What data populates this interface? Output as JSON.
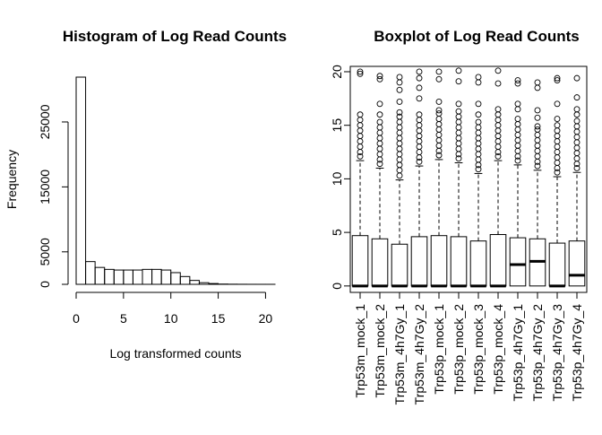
{
  "chart_data": [
    {
      "type": "bar",
      "subtype": "histogram",
      "title": "Histogram of Log Read Counts",
      "xlabel": "Log transformed counts",
      "ylabel": "Frequency",
      "bin_width": 1,
      "bins": [
        {
          "x0": 0,
          "x1": 1,
          "value": 31900
        },
        {
          "x0": 1,
          "x1": 2,
          "value": 3500
        },
        {
          "x0": 2,
          "x1": 3,
          "value": 2600
        },
        {
          "x0": 3,
          "x1": 4,
          "value": 2300
        },
        {
          "x0": 4,
          "x1": 5,
          "value": 2200
        },
        {
          "x0": 5,
          "x1": 6,
          "value": 2200
        },
        {
          "x0": 6,
          "x1": 7,
          "value": 2200
        },
        {
          "x0": 7,
          "x1": 8,
          "value": 2300
        },
        {
          "x0": 8,
          "x1": 9,
          "value": 2300
        },
        {
          "x0": 9,
          "x1": 10,
          "value": 2200
        },
        {
          "x0": 10,
          "x1": 11,
          "value": 1800
        },
        {
          "x0": 11,
          "x1": 12,
          "value": 1200
        },
        {
          "x0": 12,
          "x1": 13,
          "value": 600
        },
        {
          "x0": 13,
          "x1": 14,
          "value": 250
        },
        {
          "x0": 14,
          "x1": 15,
          "value": 120
        },
        {
          "x0": 15,
          "x1": 16,
          "value": 40
        },
        {
          "x0": 16,
          "x1": 17,
          "value": 20
        },
        {
          "x0": 17,
          "x1": 18,
          "value": 10
        },
        {
          "x0": 18,
          "x1": 19,
          "value": 5
        },
        {
          "x0": 19,
          "x1": 20,
          "value": 3
        },
        {
          "x0": 20,
          "x1": 21,
          "value": 2
        }
      ],
      "xticks": [
        0,
        5,
        10,
        15,
        20
      ],
      "yticks": [
        0,
        5000,
        15000,
        25000
      ],
      "xlim": [
        0,
        21
      ],
      "ylim": [
        0,
        31900
      ],
      "grid": false
    },
    {
      "type": "boxplot",
      "title": "Boxplot of Log Read Counts",
      "yticks": [
        0,
        5,
        10,
        15,
        20
      ],
      "ylim": [
        -0.6,
        20.5
      ],
      "grid": false,
      "categories": [
        "Trp53m_mock_1",
        "Trp53m_mock_2",
        "Trp53m_4h7Gy_1",
        "Trp53m_4h7Gy_2",
        "Trp53p_mock_1",
        "Trp53p_mock_2",
        "Trp53p_mock_3",
        "Trp53p_mock_4",
        "Trp53p_4h7Gy_1",
        "Trp53p_4h7Gy_2",
        "Trp53p_4h7Gy_3",
        "Trp53p_4h7Gy_4"
      ],
      "boxes": [
        {
          "q1": 0,
          "median": 0,
          "q3": 4.7,
          "whisker_low": 0,
          "whisker_high": 11.7,
          "outliers": [
            12.1,
            12.5,
            13.0,
            13.5,
            14.0,
            14.5,
            15.0,
            15.5,
            16.0,
            19.8,
            20.0
          ]
        },
        {
          "q1": 0,
          "median": 0,
          "q3": 4.4,
          "whisker_low": 0,
          "whisker_high": 11.0,
          "outliers": [
            11.4,
            11.8,
            12.3,
            12.8,
            13.3,
            13.8,
            14.3,
            14.8,
            15.3,
            16.0,
            17.0,
            19.3,
            19.6
          ]
        },
        {
          "q1": 0,
          "median": 0,
          "q3": 3.9,
          "whisker_low": 0,
          "whisker_high": 9.9,
          "outliers": [
            10.3,
            10.8,
            11.3,
            11.8,
            12.3,
            12.8,
            13.3,
            13.8,
            14.3,
            14.8,
            15.3,
            15.8,
            16.2,
            17.2,
            18.3,
            19.0,
            19.5
          ]
        },
        {
          "q1": 0,
          "median": 0,
          "q3": 4.6,
          "whisker_low": 0,
          "whisker_high": 11.2,
          "outliers": [
            11.6,
            12.0,
            12.5,
            13.0,
            13.5,
            14.0,
            14.5,
            15.0,
            15.5,
            16.0,
            17.5,
            18.5,
            19.4,
            20.0
          ]
        },
        {
          "q1": 0,
          "median": 0,
          "q3": 4.7,
          "whisker_low": 0,
          "whisker_high": 11.8,
          "outliers": [
            12.2,
            12.6,
            13.1,
            13.6,
            14.1,
            14.6,
            15.1,
            15.6,
            16.1,
            16.4,
            17.2,
            19.3,
            20.0
          ]
        },
        {
          "q1": 0,
          "median": 0,
          "q3": 4.6,
          "whisker_low": 0,
          "whisker_high": 11.5,
          "outliers": [
            11.9,
            12.3,
            12.8,
            13.3,
            13.8,
            14.3,
            14.8,
            15.3,
            15.8,
            16.3,
            17.0,
            19.1,
            20.1
          ]
        },
        {
          "q1": 0,
          "median": 0,
          "q3": 4.2,
          "whisker_low": 0,
          "whisker_high": 10.5,
          "outliers": [
            10.9,
            11.3,
            11.8,
            12.3,
            12.8,
            13.3,
            13.8,
            14.3,
            14.8,
            15.3,
            16.0,
            17.0,
            19.0,
            19.5
          ]
        },
        {
          "q1": 0,
          "median": 0,
          "q3": 4.8,
          "whisker_low": 0,
          "whisker_high": 11.7,
          "outliers": [
            12.1,
            12.5,
            13.0,
            13.5,
            14.0,
            14.5,
            15.0,
            15.5,
            16.0,
            16.5,
            18.9,
            20.1
          ]
        },
        {
          "q1": 0,
          "median": 2.0,
          "q3": 4.5,
          "whisker_low": 0,
          "whisker_high": 11.3,
          "outliers": [
            11.7,
            12.1,
            12.6,
            13.1,
            13.6,
            14.1,
            14.6,
            15.1,
            15.6,
            16.5,
            17.0,
            18.9,
            19.2
          ]
        },
        {
          "q1": 0,
          "median": 2.3,
          "q3": 4.4,
          "whisker_low": 0,
          "whisker_high": 10.8,
          "outliers": [
            11.2,
            11.6,
            12.1,
            12.6,
            13.1,
            13.6,
            14.1,
            14.6,
            14.9,
            15.7,
            16.4,
            18.5,
            19.0
          ]
        },
        {
          "q1": 0,
          "median": 0,
          "q3": 4.0,
          "whisker_low": 0,
          "whisker_high": 10.2,
          "outliers": [
            10.6,
            11.0,
            11.5,
            12.0,
            12.5,
            13.0,
            13.5,
            14.0,
            14.5,
            15.0,
            15.6,
            17.0,
            19.2,
            19.4
          ]
        },
        {
          "q1": 0,
          "median": 1.0,
          "q3": 4.2,
          "whisker_low": 0,
          "whisker_high": 10.6,
          "outliers": [
            11.0,
            11.4,
            11.9,
            12.4,
            12.9,
            13.4,
            13.9,
            14.4,
            14.9,
            15.4,
            16.0,
            16.5,
            17.6,
            19.4
          ]
        }
      ]
    }
  ]
}
